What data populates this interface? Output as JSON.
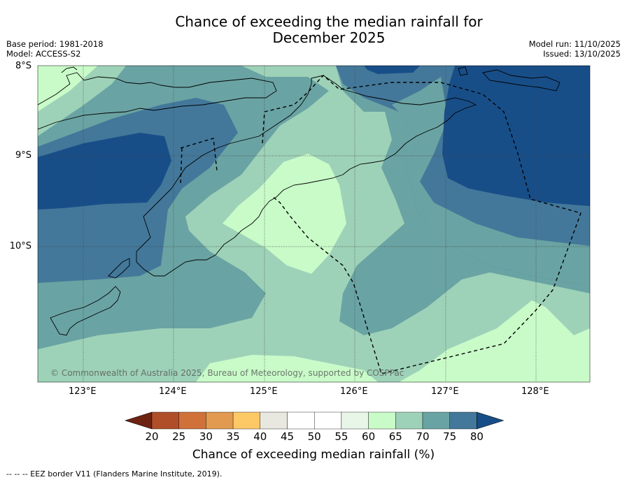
{
  "title_line1": "Chance of exceeding the median rainfall for",
  "title_line2": "December 2025",
  "base_period": "Base period: 1981-2018",
  "model": "Model: ACCESS-S2",
  "model_run": "Model run: 11/10/2025",
  "issued": "Issued: 13/10/2025",
  "copyright": "© Commonwealth of Australia 2025, Bureau of Meteorology, supported by COSPPac",
  "lat_labels": [
    "8°S",
    "9°S",
    "10°S"
  ],
  "lon_labels": [
    "123°E",
    "124°E",
    "125°E",
    "126°E",
    "127°E",
    "128°E"
  ],
  "colorbar": {
    "label": "Chance of exceeding median rainfall (%)",
    "ticks": [
      "20",
      "25",
      "30",
      "35",
      "40",
      "45",
      "50",
      "55",
      "60",
      "65",
      "70",
      "75",
      "80"
    ],
    "colors": [
      "#6e2212",
      "#b04e2a",
      "#d0713a",
      "#e19a4f",
      "#fdc866",
      "#e8e8e0",
      "#ffffff",
      "#ffffff",
      "#e8f6e8",
      "#c9fbc9",
      "#9ed2b8",
      "#6aa3a3",
      "#43789a",
      "#184e88"
    ]
  },
  "footnote": "-- -- -- EEZ border V11 (Flanders Marine Institute, 2019).",
  "colors": {
    "c60_65": "#c9fbc9",
    "c65_70": "#9ed2b8",
    "c70_75": "#6aa3a3",
    "c75_80": "#43789a",
    "c80": "#184e88"
  }
}
